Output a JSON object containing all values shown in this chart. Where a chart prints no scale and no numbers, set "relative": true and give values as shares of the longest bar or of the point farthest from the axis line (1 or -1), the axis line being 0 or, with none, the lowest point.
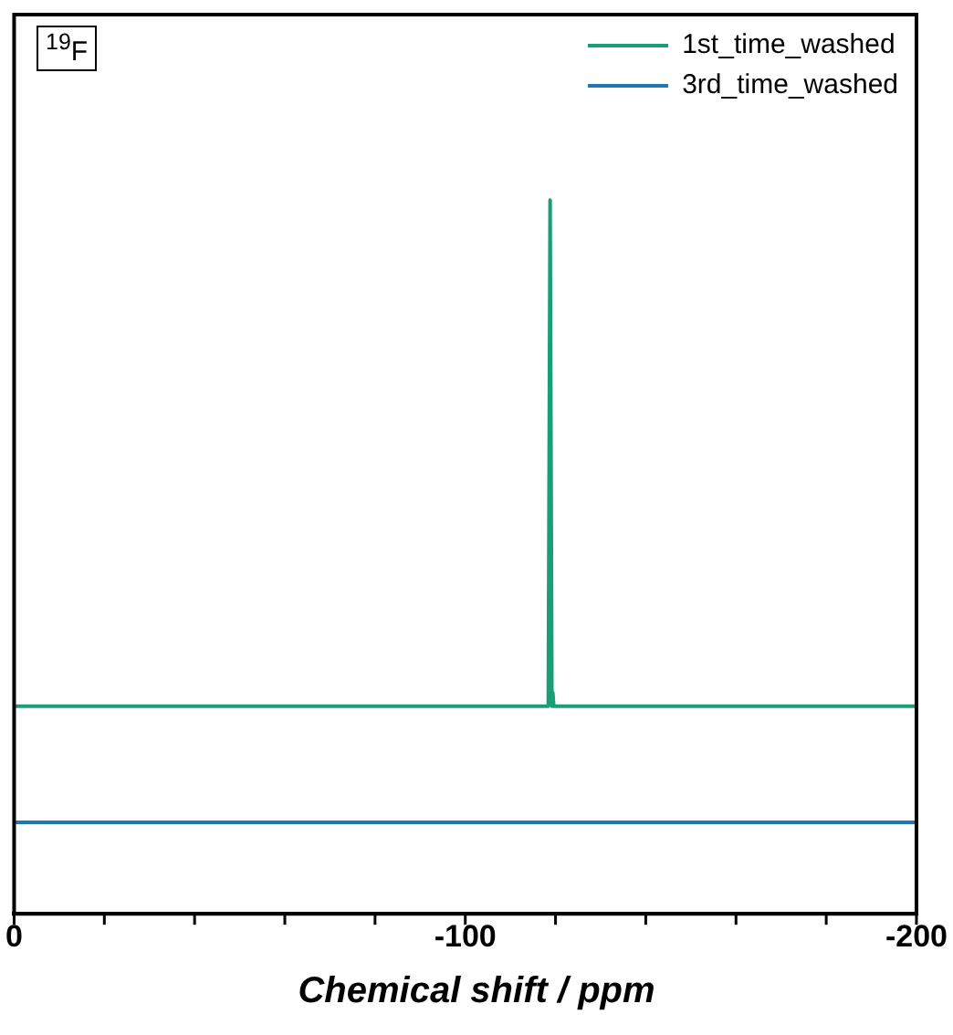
{
  "chart_data": {
    "type": "line",
    "relative": true,
    "xlabel": "Chemical shift / ppm",
    "annotations": [
      "$^{19}$F"
    ],
    "legend": "top right",
    "marker": "none",
    "x": [
      0,
      -118.4,
      -118.8,
      -119.2,
      -119.4,
      -119.6,
      -200
    ],
    "xlim": [
      0,
      -200
    ],
    "xticks": [
      0,
      {
        "value": -20,
        "label": null
      },
      {
        "value": -40,
        "label": null
      },
      {
        "value": -60,
        "label": null
      },
      {
        "value": -80,
        "label": null
      },
      -100,
      {
        "value": -120,
        "label": null
      },
      {
        "value": -140,
        "label": null
      },
      {
        "value": -160,
        "label": null
      },
      {
        "value": -180,
        "label": null
      },
      -200
    ],
    "series": [
      {
        "name": "1st_time_washed",
        "color": "#1a9e77",
        "values": [
          0.291,
          0.291,
          1,
          0.291,
          0.31,
          0.291,
          0.291
        ]
      },
      {
        "name": "3rd_time_washed",
        "color": "#1f78b4",
        "x": [
          0,
          -200
        ],
        "values": [
          0.128,
          0.128
        ]
      }
    ]
  }
}
